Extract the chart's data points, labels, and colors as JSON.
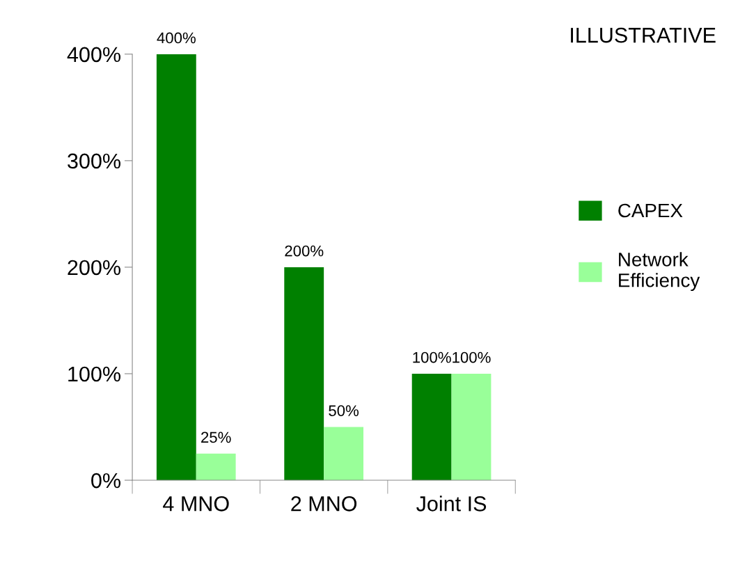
{
  "chart_data": {
    "type": "bar",
    "categories": [
      "4 MNO",
      "2 MNO",
      "Joint IS"
    ],
    "series": [
      {
        "name": "CAPEX",
        "color": "#008000",
        "values": [
          400,
          200,
          100
        ],
        "value_labels": [
          "400%",
          "200%",
          "100%"
        ]
      },
      {
        "name": "Network\nEfficiency",
        "color": "#99ff99",
        "values": [
          25,
          50,
          100
        ],
        "value_labels": [
          "25%",
          "50%",
          "100%"
        ]
      }
    ],
    "ylim": [
      0,
      400
    ],
    "yticks": [
      {
        "value": 0,
        "label": "0%"
      },
      {
        "value": 100,
        "label": "100%"
      },
      {
        "value": 200,
        "label": "200%"
      },
      {
        "value": 300,
        "label": "300%"
      },
      {
        "value": 400,
        "label": "400%"
      }
    ],
    "annotations": [
      "ILLUSTRATIVE"
    ],
    "legend": "right",
    "grid": false
  }
}
